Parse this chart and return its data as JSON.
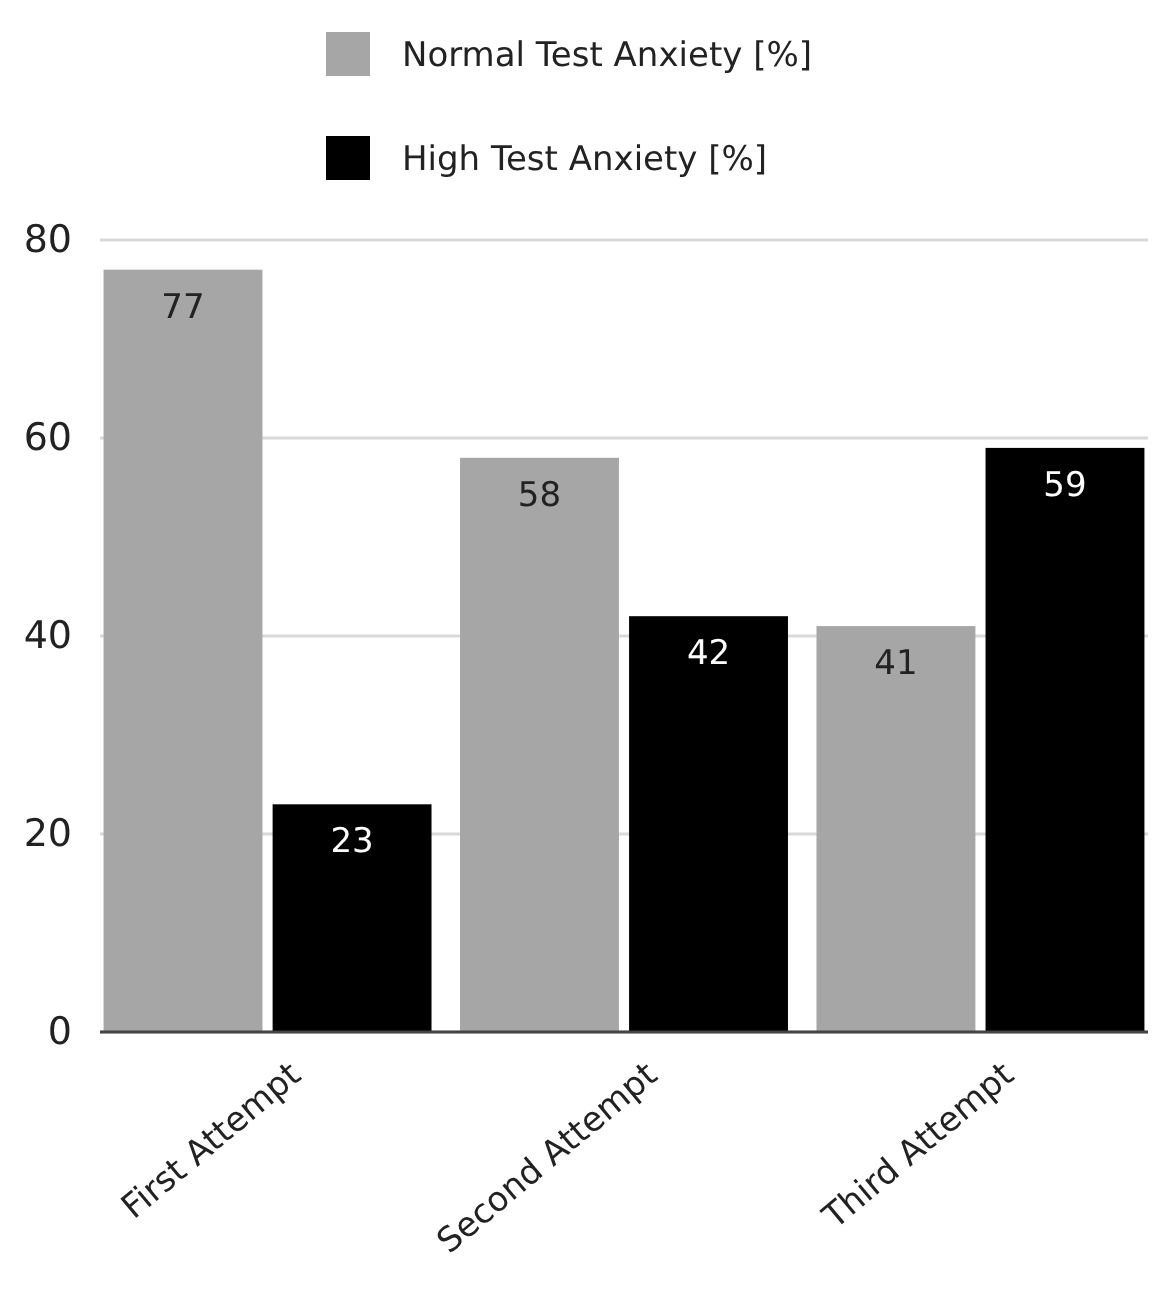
{
  "chart_data": {
    "type": "bar",
    "categories": [
      "First Attempt",
      "Second Attempt",
      "Third Attempt"
    ],
    "series": [
      {
        "name": "Normal Test Anxiety [%]",
        "color": "#a6a6a6",
        "values": [
          77,
          58,
          41
        ]
      },
      {
        "name": "High Test Anxiety [%]",
        "color": "#000000",
        "values": [
          23,
          42,
          59
        ]
      }
    ],
    "ylim": [
      0,
      80
    ],
    "yticks": [
      0,
      20,
      40,
      60,
      80
    ],
    "grid": "y",
    "legend": "top",
    "data_labels": true
  }
}
